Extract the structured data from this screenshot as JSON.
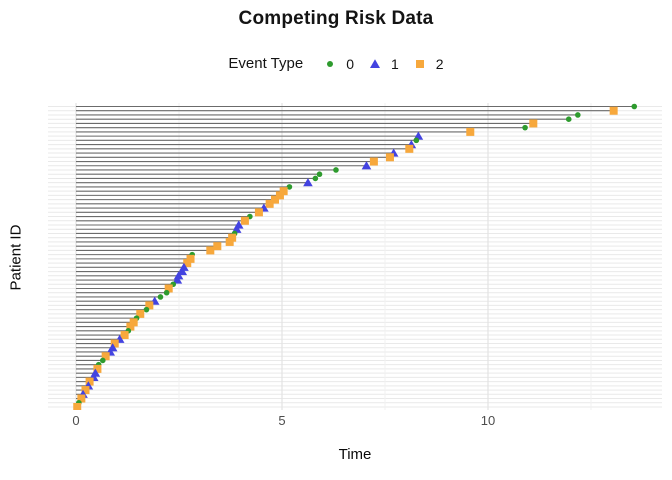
{
  "chart_data": {
    "type": "scatter",
    "subtype": "competing-risk-event-plot",
    "title": "Competing Risk Data",
    "legend_title": "Event Type",
    "xlabel": "Time",
    "ylabel": "Patient ID",
    "x_ticks": [
      0,
      5,
      10
    ],
    "x_minor_gridlines": [
      2.5,
      7.5,
      12.5
    ],
    "xlim": [
      -0.68,
      14.25
    ],
    "grid": "on",
    "legend_position": "top",
    "colors": {
      "event0": "#2E9B2E",
      "event1": "#4343E0",
      "event2": "#F7A83C",
      "segment": "#6b6b6b",
      "grid_major": "#e3e3e3",
      "grid_minor": "#f1f1f1",
      "axis_text": "#4d4d4d"
    },
    "event_types": [
      {
        "value": "0",
        "shape": "circle",
        "color": "#2E9B2E"
      },
      {
        "value": "1",
        "shape": "triangle",
        "color": "#4343E0"
      },
      {
        "value": "2",
        "shape": "square",
        "color": "#F7A83C"
      }
    ],
    "patients": [
      {
        "time": 13.55,
        "event": "0"
      },
      {
        "time": 13.05,
        "event": "2"
      },
      {
        "time": 12.18,
        "event": "0"
      },
      {
        "time": 11.96,
        "event": "0"
      },
      {
        "time": 11.1,
        "event": "2"
      },
      {
        "time": 10.9,
        "event": "0"
      },
      {
        "time": 9.57,
        "event": "2"
      },
      {
        "time": 8.31,
        "event": "1"
      },
      {
        "time": 8.26,
        "event": "0"
      },
      {
        "time": 8.14,
        "event": "1"
      },
      {
        "time": 8.09,
        "event": "2"
      },
      {
        "time": 7.71,
        "event": "1"
      },
      {
        "time": 7.62,
        "event": "2"
      },
      {
        "time": 7.23,
        "event": "2"
      },
      {
        "time": 7.05,
        "event": "1"
      },
      {
        "time": 6.31,
        "event": "0"
      },
      {
        "time": 5.91,
        "event": "0"
      },
      {
        "time": 5.81,
        "event": "0"
      },
      {
        "time": 5.63,
        "event": "1"
      },
      {
        "time": 5.18,
        "event": "0"
      },
      {
        "time": 5.04,
        "event": "2"
      },
      {
        "time": 4.95,
        "event": "2"
      },
      {
        "time": 4.83,
        "event": "2"
      },
      {
        "time": 4.7,
        "event": "2"
      },
      {
        "time": 4.56,
        "event": "1"
      },
      {
        "time": 4.44,
        "event": "2"
      },
      {
        "time": 4.22,
        "event": "0"
      },
      {
        "time": 4.1,
        "event": "2"
      },
      {
        "time": 3.95,
        "event": "1"
      },
      {
        "time": 3.9,
        "event": "1"
      },
      {
        "time": 3.85,
        "event": "0"
      },
      {
        "time": 3.79,
        "event": "2"
      },
      {
        "time": 3.73,
        "event": "2"
      },
      {
        "time": 3.43,
        "event": "2"
      },
      {
        "time": 3.26,
        "event": "2"
      },
      {
        "time": 2.82,
        "event": "0"
      },
      {
        "time": 2.78,
        "event": "2"
      },
      {
        "time": 2.7,
        "event": "2"
      },
      {
        "time": 2.62,
        "event": "1"
      },
      {
        "time": 2.58,
        "event": "1"
      },
      {
        "time": 2.49,
        "event": "1"
      },
      {
        "time": 2.46,
        "event": "1"
      },
      {
        "time": 2.36,
        "event": "0"
      },
      {
        "time": 2.25,
        "event": "2"
      },
      {
        "time": 2.2,
        "event": "0"
      },
      {
        "time": 2.05,
        "event": "0"
      },
      {
        "time": 1.91,
        "event": "1"
      },
      {
        "time": 1.78,
        "event": "2"
      },
      {
        "time": 1.71,
        "event": "0"
      },
      {
        "time": 1.56,
        "event": "2"
      },
      {
        "time": 1.47,
        "event": "0"
      },
      {
        "time": 1.4,
        "event": "2"
      },
      {
        "time": 1.32,
        "event": "2"
      },
      {
        "time": 1.27,
        "event": "0"
      },
      {
        "time": 1.18,
        "event": "2"
      },
      {
        "time": 1.06,
        "event": "1"
      },
      {
        "time": 0.94,
        "event": "2"
      },
      {
        "time": 0.89,
        "event": "1"
      },
      {
        "time": 0.83,
        "event": "1"
      },
      {
        "time": 0.72,
        "event": "2"
      },
      {
        "time": 0.65,
        "event": "0"
      },
      {
        "time": 0.55,
        "event": "0"
      },
      {
        "time": 0.52,
        "event": "2"
      },
      {
        "time": 0.47,
        "event": "1"
      },
      {
        "time": 0.43,
        "event": "1"
      },
      {
        "time": 0.33,
        "event": "2"
      },
      {
        "time": 0.3,
        "event": "1"
      },
      {
        "time": 0.23,
        "event": "2"
      },
      {
        "time": 0.17,
        "event": "1"
      },
      {
        "time": 0.13,
        "event": "2"
      },
      {
        "time": 0.07,
        "event": "0"
      },
      {
        "time": 0.03,
        "event": "2"
      }
    ]
  }
}
